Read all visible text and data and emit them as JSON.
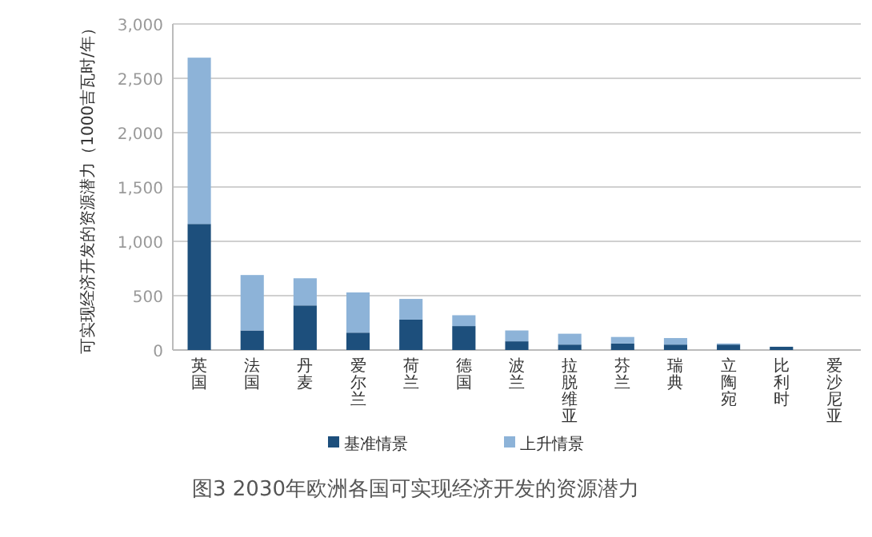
{
  "chart_data": {
    "type": "bar",
    "stacked": true,
    "title": "图3 2030年欧洲各国可实现经济开发的资源潜力",
    "ylabel": "可实现经济开发的资源潜力（1000吉瓦时/年）",
    "categories": [
      "英国",
      "法国",
      "丹麦",
      "爱尔兰",
      "荷兰",
      "德国",
      "波兰",
      "拉脱维亚",
      "芬兰",
      "瑞典",
      "立陶宛",
      "比利时",
      "爱沙尼亚"
    ],
    "series": [
      {
        "name": "基准情景",
        "color": "#1d4f7c",
        "values": [
          1160,
          180,
          410,
          160,
          280,
          220,
          80,
          50,
          60,
          50,
          50,
          30,
          0
        ]
      },
      {
        "name": "上升情景",
        "color": "#8db3d8",
        "values": [
          1530,
          510,
          250,
          370,
          190,
          100,
          100,
          100,
          60,
          60,
          10,
          0,
          0
        ]
      }
    ],
    "ylim": [
      0,
      3000
    ],
    "yticks": [
      0,
      500,
      {
        "value": 1000,
        "label": "1,000"
      },
      {
        "value": 1500,
        "label": "1,500"
      },
      {
        "value": 2000,
        "label": "2,000"
      },
      {
        "value": 2500,
        "label": "2,500"
      },
      {
        "value": 3000,
        "label": "3,000"
      }
    ],
    "grid": "y",
    "legend": "bottom"
  }
}
